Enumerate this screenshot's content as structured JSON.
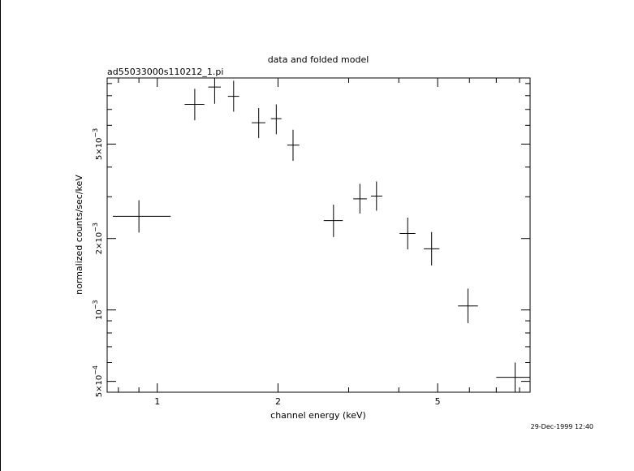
{
  "chart_data": {
    "type": "scatter",
    "title": "data and folded model",
    "subtitle": "ad55033000s110212_1.pi",
    "xlabel": "channel energy (keV)",
    "ylabel": "normalized counts/sec/keV",
    "timestamp": "29-Dec-1999 12:40",
    "x_scale": "log",
    "y_scale": "log",
    "xlim": [
      0.75,
      8.5
    ],
    "ylim": [
      0.00045,
      0.0095
    ],
    "x_ticks": [
      {
        "value": 1,
        "label": "1"
      },
      {
        "value": 2,
        "label": "2"
      },
      {
        "value": 5,
        "label": "5"
      }
    ],
    "y_ticks": [
      {
        "value": 0.0005,
        "mant": "5×10",
        "exp": "−4"
      },
      {
        "value": 0.001,
        "mant": "10",
        "exp": "−3"
      },
      {
        "value": 0.002,
        "mant": "2×10",
        "exp": "−3"
      },
      {
        "value": 0.005,
        "mant": "5×10",
        "exp": "−3"
      }
    ],
    "grid": false,
    "series": [
      {
        "marker": "crosses",
        "points": [
          {
            "x": 0.9,
            "xlo": 0.775,
            "xhi": 1.08,
            "y": 0.00248,
            "ylo": 0.00212,
            "yhi": 0.0029
          },
          {
            "x": 1.24,
            "xlo": 1.17,
            "xhi": 1.31,
            "y": 0.00735,
            "ylo": 0.0063,
            "yhi": 0.00855
          },
          {
            "x": 1.39,
            "xlo": 1.34,
            "xhi": 1.44,
            "y": 0.0087,
            "ylo": 0.0074,
            "yhi": 0.01
          },
          {
            "x": 1.55,
            "xlo": 1.5,
            "xhi": 1.6,
            "y": 0.00795,
            "ylo": 0.00685,
            "yhi": 0.00925
          },
          {
            "x": 1.79,
            "xlo": 1.72,
            "xhi": 1.86,
            "y": 0.00615,
            "ylo": 0.0053,
            "yhi": 0.0071
          },
          {
            "x": 1.98,
            "xlo": 1.92,
            "xhi": 2.04,
            "y": 0.0064,
            "ylo": 0.0055,
            "yhi": 0.00735
          },
          {
            "x": 2.18,
            "xlo": 2.11,
            "xhi": 2.26,
            "y": 0.00495,
            "ylo": 0.00425,
            "yhi": 0.00575
          },
          {
            "x": 2.75,
            "xlo": 2.6,
            "xhi": 2.9,
            "y": 0.00238,
            "ylo": 0.00203,
            "yhi": 0.00278
          },
          {
            "x": 3.2,
            "xlo": 3.08,
            "xhi": 3.33,
            "y": 0.00294,
            "ylo": 0.00255,
            "yhi": 0.0034
          },
          {
            "x": 3.52,
            "xlo": 3.41,
            "xhi": 3.64,
            "y": 0.00302,
            "ylo": 0.00262,
            "yhi": 0.00348
          },
          {
            "x": 4.21,
            "xlo": 4.02,
            "xhi": 4.4,
            "y": 0.0021,
            "ylo": 0.0018,
            "yhi": 0.00245
          },
          {
            "x": 4.83,
            "xlo": 4.62,
            "xhi": 5.05,
            "y": 0.00181,
            "ylo": 0.00154,
            "yhi": 0.00213
          },
          {
            "x": 5.95,
            "xlo": 5.62,
            "xhi": 6.3,
            "y": 0.00104,
            "ylo": 0.00088,
            "yhi": 0.00123
          },
          {
            "x": 7.8,
            "xlo": 7.0,
            "xhi": 8.5,
            "y": 0.00052,
            "ylo": 0.00044,
            "yhi": 0.0006
          }
        ]
      }
    ]
  }
}
